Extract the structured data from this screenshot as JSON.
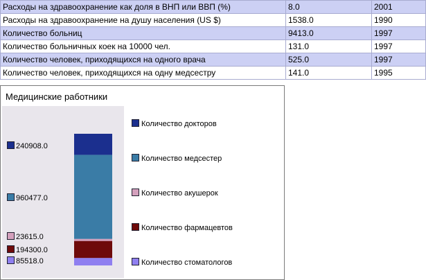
{
  "table": {
    "rows": [
      {
        "label": "Расходы на здравоохранение как доля в ВНП или ВВП (%)",
        "value": "8.0",
        "year": "2001"
      },
      {
        "label": "Расходы на здравоохранение на душу населения (US $)",
        "value": "1538.0",
        "year": "1990"
      },
      {
        "label": "Количество больниц",
        "value": "9413.0",
        "year": "1997"
      },
      {
        "label": "Количество больничных коек на 10000 чел.",
        "value": "131.0",
        "year": "1997"
      },
      {
        "label": "Количество человек, приходящихся на одного врача",
        "value": "525.0",
        "year": "1997"
      },
      {
        "label": "Количество человек, приходящихся на одну медсестру",
        "value": "141.0",
        "year": "1995"
      }
    ]
  },
  "chart_data": {
    "type": "bar",
    "stacked": true,
    "title": "Медицинские работники",
    "legend_position": "right",
    "series": [
      {
        "name": "Количество докторов",
        "value": 240908.0,
        "label": "240908.0",
        "color": "#1b2f8e"
      },
      {
        "name": "Количество медсестер",
        "value": 960477.0,
        "label": "960477.0",
        "color": "#3a7ca6"
      },
      {
        "name": "Количество акушерок",
        "value": 23615.0,
        "label": "23615.0",
        "color": "#d4a0bc"
      },
      {
        "name": "Количество фармацевтов",
        "value": 194300.0,
        "label": "194300.0",
        "color": "#6e0a0a"
      },
      {
        "name": "Количество стоматологов",
        "value": 85518.0,
        "label": "85518.0",
        "color": "#8f7ff0"
      }
    ]
  }
}
